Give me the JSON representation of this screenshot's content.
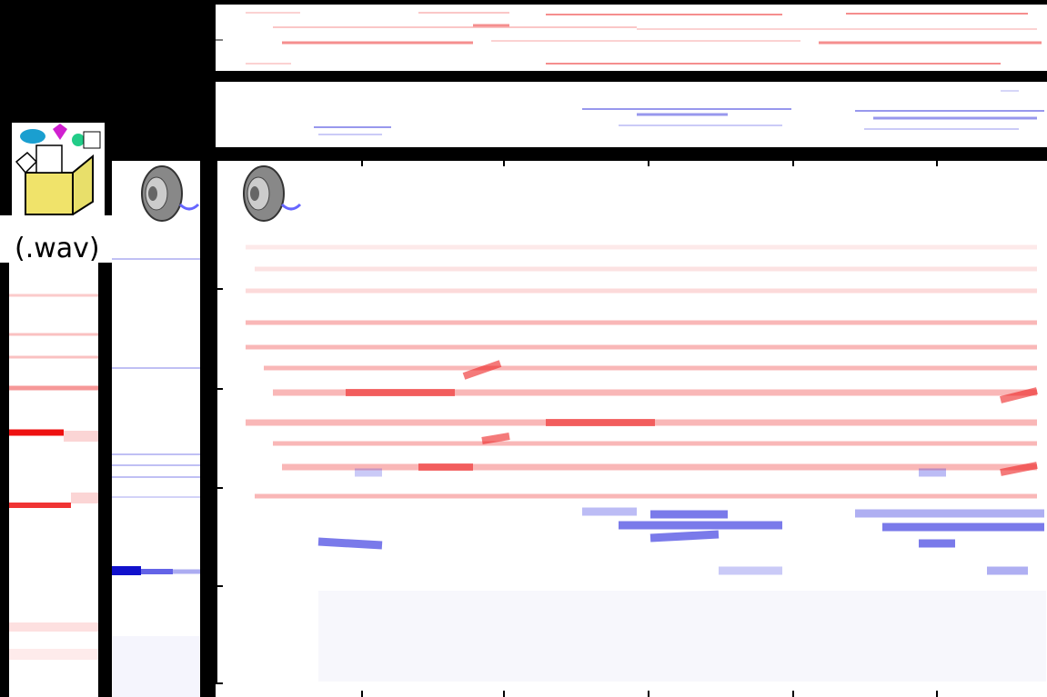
{
  "icon_label": "(.wav)"
}
